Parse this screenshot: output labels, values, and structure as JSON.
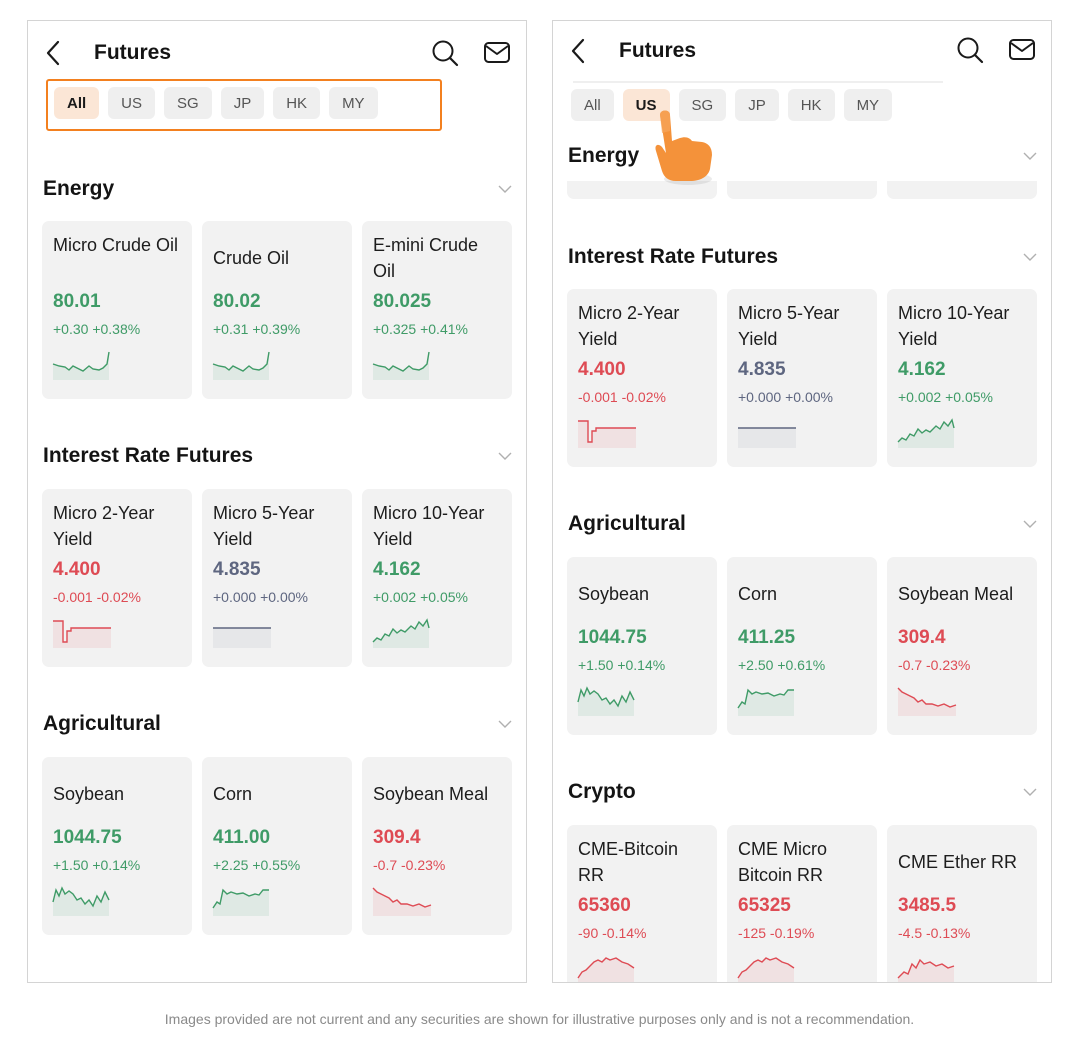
{
  "left": {
    "title": "Futures",
    "filters": [
      {
        "label": "All",
        "active": true
      },
      {
        "label": "US",
        "active": false
      },
      {
        "label": "SG",
        "active": false
      },
      {
        "label": "JP",
        "active": false
      },
      {
        "label": "HK",
        "active": false
      },
      {
        "label": "MY",
        "active": false
      }
    ],
    "sections": [
      {
        "title": "Energy",
        "cards": [
          {
            "name": "Micro Crude Oil",
            "price": "80.01",
            "change": "+0.30 +0.38%",
            "trend": "up"
          },
          {
            "name": "Crude Oil",
            "price": "80.02",
            "change": "+0.31 +0.39%",
            "trend": "up"
          },
          {
            "name": "E-mini Crude Oil",
            "price": "80.025",
            "change": "+0.325 +0.41%",
            "trend": "up"
          }
        ]
      },
      {
        "title": "Interest Rate Futures",
        "cards": [
          {
            "name": "Micro 2-Year Yield",
            "price": "4.400",
            "change": "-0.001 -0.02%",
            "trend": "down"
          },
          {
            "name": "Micro 5-Year Yield",
            "price": "4.835",
            "change": "+0.000 +0.00%",
            "trend": "flat"
          },
          {
            "name": "Micro 10-Year Yield",
            "price": "4.162",
            "change": "+0.002 +0.05%",
            "trend": "up"
          }
        ]
      },
      {
        "title": "Agricultural",
        "cards": [
          {
            "name": "Soybean",
            "price": "1044.75",
            "change": "+1.50 +0.14%",
            "trend": "up"
          },
          {
            "name": "Corn",
            "price": "411.00",
            "change": "+2.25 +0.55%",
            "trend": "up"
          },
          {
            "name": "Soybean Meal",
            "price": "309.4",
            "change": "-0.7 -0.23%",
            "trend": "down"
          }
        ]
      }
    ]
  },
  "right": {
    "title": "Futures",
    "filters": [
      {
        "label": "All",
        "active": false
      },
      {
        "label": "US",
        "active": true
      },
      {
        "label": "SG",
        "active": false
      },
      {
        "label": "JP",
        "active": false
      },
      {
        "label": "HK",
        "active": false
      },
      {
        "label": "MY",
        "active": false
      }
    ],
    "sections": [
      {
        "title": "Energy",
        "cards": []
      },
      {
        "title": "Interest Rate Futures",
        "cards": [
          {
            "name": "Micro 2-Year Yield",
            "price": "4.400",
            "change": "-0.001 -0.02%",
            "trend": "down"
          },
          {
            "name": "Micro 5-Year Yield",
            "price": "4.835",
            "change": "+0.000 +0.00%",
            "trend": "flat"
          },
          {
            "name": "Micro 10-Year Yield",
            "price": "4.162",
            "change": "+0.002 +0.05%",
            "trend": "up"
          }
        ]
      },
      {
        "title": "Agricultural",
        "cards": [
          {
            "name": "Soybean",
            "price": "1044.75",
            "change": "+1.50 +0.14%",
            "trend": "up"
          },
          {
            "name": "Corn",
            "price": "411.25",
            "change": "+2.50 +0.61%",
            "trend": "up"
          },
          {
            "name": "Soybean Meal",
            "price": "309.4",
            "change": "-0.7 -0.23%",
            "trend": "down"
          }
        ]
      },
      {
        "title": "Crypto",
        "cards": [
          {
            "name": "CME-Bitcoin RR",
            "price": "65360",
            "change": "-90 -0.14%",
            "trend": "down"
          },
          {
            "name": "CME Micro Bitcoin RR",
            "price": "65325",
            "change": "-125 -0.19%",
            "trend": "down"
          },
          {
            "name": "CME Ether RR",
            "price": "3485.5",
            "change": "-4.5 -0.13%",
            "trend": "down"
          }
        ]
      }
    ]
  },
  "colors": {
    "up": "#3f9b67",
    "down": "#de4b54",
    "flat": "#5e6680",
    "accent": "#f3801f",
    "chip_active_bg": "#fbe6d6"
  },
  "icons": [
    "back-arrow-icon",
    "search-icon",
    "mail-icon",
    "chevron-down-icon",
    "pointing-hand-icon"
  ],
  "disclaimer": "Images provided are not current and any securities are shown for illustrative purposes only and is not a recommendation."
}
